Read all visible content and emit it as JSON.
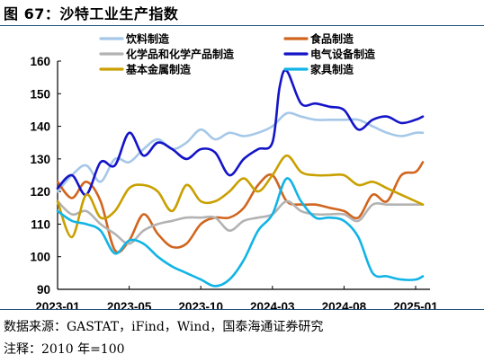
{
  "figure": {
    "title": "图 67：沙特工业生产指数",
    "source": "数据来源：GASTAT，iFind，Wind，国泰海通证券研究",
    "note": "注释：2010 年=100"
  },
  "chart_data": {
    "type": "line",
    "title": "",
    "xlabel": "",
    "ylabel": "",
    "ylim": [
      90,
      160
    ],
    "yticks": [
      90,
      100,
      110,
      120,
      130,
      140,
      150,
      160
    ],
    "xlim": [
      0,
      25
    ],
    "xticks": [
      {
        "pos": 0,
        "label": "2023-01"
      },
      {
        "pos": 5,
        "label": "2023-05"
      },
      {
        "pos": 10,
        "label": "2023-10"
      },
      {
        "pos": 15,
        "label": "2024-03"
      },
      {
        "pos": 20,
        "label": "2024-08"
      },
      {
        "pos": 25,
        "label": "2025-01"
      }
    ],
    "legend_position": "top",
    "grid": false,
    "series": [
      {
        "name": "饮料制造",
        "color": "#a6c8e8",
        "points": [
          [
            0,
            120
          ],
          [
            1,
            125
          ],
          [
            2,
            128
          ],
          [
            3,
            123
          ],
          [
            4,
            130
          ],
          [
            5,
            129
          ],
          [
            6,
            133
          ],
          [
            7,
            136
          ],
          [
            8,
            133
          ],
          [
            9,
            135
          ],
          [
            10,
            139
          ],
          [
            11,
            136
          ],
          [
            12,
            138
          ],
          [
            13,
            137
          ],
          [
            14,
            138
          ],
          [
            15,
            140
          ],
          [
            16,
            144
          ],
          [
            17,
            143
          ],
          [
            18,
            142
          ],
          [
            19,
            142
          ],
          [
            20,
            142
          ],
          [
            21,
            142
          ],
          [
            22,
            140
          ],
          [
            23,
            138
          ],
          [
            24,
            137
          ],
          [
            25,
            138
          ],
          [
            25.5,
            138
          ]
        ]
      },
      {
        "name": "食品制造",
        "color": "#d1651f",
        "points": [
          [
            0,
            123
          ],
          [
            1,
            118
          ],
          [
            2,
            123
          ],
          [
            3,
            117
          ],
          [
            4,
            102
          ],
          [
            5,
            105
          ],
          [
            6,
            113
          ],
          [
            7,
            107
          ],
          [
            8,
            103
          ],
          [
            9,
            104
          ],
          [
            10,
            110
          ],
          [
            11,
            112
          ],
          [
            12,
            112
          ],
          [
            13,
            115
          ],
          [
            14,
            122
          ],
          [
            15,
            125
          ],
          [
            16,
            117
          ],
          [
            17,
            116
          ],
          [
            18,
            116
          ],
          [
            19,
            115
          ],
          [
            20,
            114
          ],
          [
            21,
            112
          ],
          [
            22,
            119
          ],
          [
            23,
            117
          ],
          [
            24,
            125
          ],
          [
            25,
            126
          ],
          [
            25.5,
            129
          ]
        ]
      },
      {
        "name": "化学品和化学产品制造",
        "color": "#b3b3b3",
        "points": [
          [
            0,
            117
          ],
          [
            1,
            113
          ],
          [
            2,
            114
          ],
          [
            3,
            110
          ],
          [
            4,
            107
          ],
          [
            5,
            104
          ],
          [
            6,
            108
          ],
          [
            7,
            110
          ],
          [
            8,
            111
          ],
          [
            9,
            112
          ],
          [
            10,
            112
          ],
          [
            11,
            112
          ],
          [
            12,
            108
          ],
          [
            13,
            111
          ],
          [
            14,
            112
          ],
          [
            15,
            113
          ],
          [
            16,
            117
          ],
          [
            17,
            114
          ],
          [
            18,
            113
          ],
          [
            19,
            113
          ],
          [
            20,
            113
          ],
          [
            21,
            111
          ],
          [
            22,
            116
          ],
          [
            23,
            116
          ],
          [
            24,
            116
          ],
          [
            25,
            116
          ],
          [
            25.5,
            116
          ]
        ]
      },
      {
        "name": "电气设备制造",
        "color": "#1414c8",
        "points": [
          [
            0,
            121
          ],
          [
            1,
            125
          ],
          [
            2,
            119
          ],
          [
            3,
            129
          ],
          [
            4,
            128
          ],
          [
            5,
            138
          ],
          [
            6,
            131
          ],
          [
            7,
            135
          ],
          [
            8,
            133
          ],
          [
            9,
            130
          ],
          [
            10,
            133
          ],
          [
            11,
            132
          ],
          [
            12,
            125
          ],
          [
            13,
            130
          ],
          [
            14,
            133
          ],
          [
            15,
            135
          ],
          [
            15.5,
            152
          ],
          [
            16,
            157
          ],
          [
            17,
            147
          ],
          [
            18,
            147
          ],
          [
            19,
            146
          ],
          [
            20,
            145
          ],
          [
            21,
            139
          ],
          [
            22,
            142
          ],
          [
            23,
            143
          ],
          [
            24,
            141
          ],
          [
            25,
            142
          ],
          [
            25.5,
            143
          ]
        ]
      },
      {
        "name": "基本金属制造",
        "color": "#c9a000",
        "points": [
          [
            0,
            117
          ],
          [
            1,
            106
          ],
          [
            2,
            119
          ],
          [
            3,
            112
          ],
          [
            4,
            114
          ],
          [
            5,
            121
          ],
          [
            6,
            122
          ],
          [
            7,
            120
          ],
          [
            8,
            114
          ],
          [
            9,
            122
          ],
          [
            10,
            117
          ],
          [
            11,
            117
          ],
          [
            12,
            120
          ],
          [
            13,
            124
          ],
          [
            14,
            120
          ],
          [
            15,
            125
          ],
          [
            16,
            131
          ],
          [
            17,
            126
          ],
          [
            18,
            125
          ],
          [
            19,
            125
          ],
          [
            20,
            125
          ],
          [
            21,
            122
          ],
          [
            22,
            123
          ],
          [
            23,
            121
          ],
          [
            24,
            119
          ],
          [
            25,
            117
          ],
          [
            25.5,
            116
          ]
        ]
      },
      {
        "name": "家具制造",
        "color": "#12b4e6",
        "points": [
          [
            0,
            114
          ],
          [
            1,
            111
          ],
          [
            2,
            110
          ],
          [
            3,
            108
          ],
          [
            4,
            101
          ],
          [
            5,
            105
          ],
          [
            6,
            104
          ],
          [
            7,
            100
          ],
          [
            8,
            97
          ],
          [
            9,
            95
          ],
          [
            10,
            93
          ],
          [
            11,
            91
          ],
          [
            12,
            93
          ],
          [
            13,
            99
          ],
          [
            14,
            108
          ],
          [
            15,
            113
          ],
          [
            16,
            124
          ],
          [
            17,
            117
          ],
          [
            18,
            112
          ],
          [
            19,
            112
          ],
          [
            20,
            111
          ],
          [
            21,
            106
          ],
          [
            22,
            95
          ],
          [
            23,
            94
          ],
          [
            24,
            93
          ],
          [
            25,
            93
          ],
          [
            25.5,
            94
          ]
        ]
      }
    ]
  }
}
